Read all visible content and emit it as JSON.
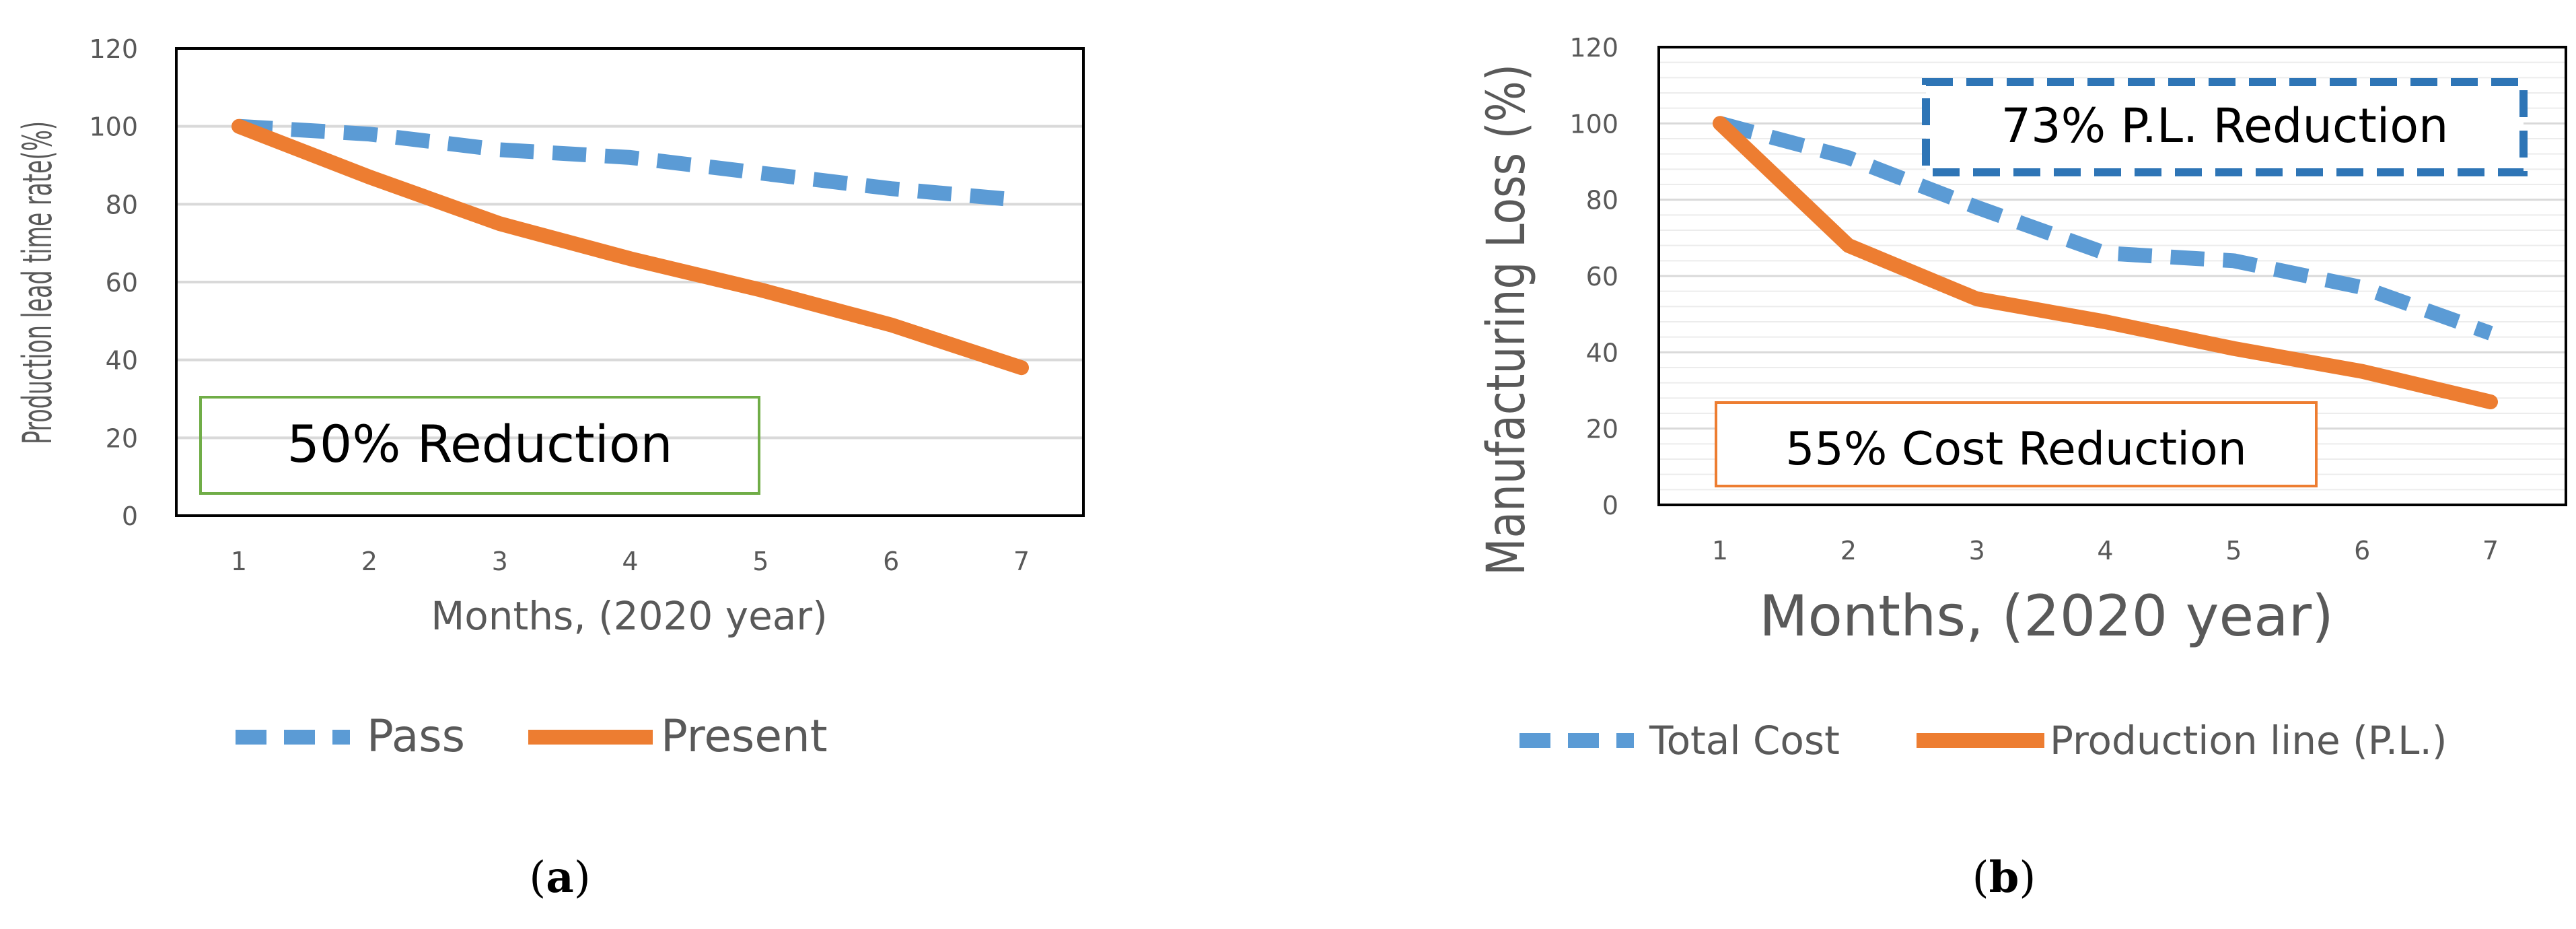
{
  "chart_data": [
    {
      "type": "line",
      "panel_label": "a",
      "x": [
        1,
        2,
        3,
        4,
        5,
        6,
        7
      ],
      "categories": [
        "1",
        "2",
        "3",
        "4",
        "5",
        "6",
        "7"
      ],
      "series": [
        {
          "name": "Pass",
          "values": [
            100,
            98,
            94,
            92,
            88,
            84,
            81
          ],
          "color": "#5B9BD5",
          "style": "dashed"
        },
        {
          "name": "Present",
          "values": [
            100,
            87,
            75,
            66,
            58,
            49,
            38
          ],
          "color": "#ED7D31",
          "style": "solid"
        }
      ],
      "ylim": [
        0,
        120
      ],
      "yticks": [
        "0",
        "20",
        "40",
        "60",
        "80",
        "100",
        "120"
      ],
      "xlabel": "Months, (2020 year)",
      "ylabel": "Production lead time rate(%)",
      "grid": true,
      "legend": "bottom",
      "annotations": [
        {
          "text": "50% Reduction",
          "border_color": "#70AD47",
          "border_style": "solid",
          "placement": "bottom-left"
        }
      ]
    },
    {
      "type": "line",
      "panel_label": "b",
      "x": [
        1,
        2,
        3,
        4,
        5,
        6,
        7
      ],
      "categories": [
        "1",
        "2",
        "3",
        "4",
        "5",
        "6",
        "7"
      ],
      "series": [
        {
          "name": "Total Cost",
          "values": [
            100,
            91,
            78,
            66,
            64,
            57,
            45
          ],
          "color": "#5B9BD5",
          "style": "dashed"
        },
        {
          "name": "Production line (P.L.)",
          "values": [
            100,
            68,
            54,
            48,
            41,
            35,
            27
          ],
          "color": "#ED7D31",
          "style": "solid"
        }
      ],
      "ylim": [
        0,
        120
      ],
      "yticks": [
        "0",
        "20",
        "40",
        "60",
        "80",
        "100",
        "120"
      ],
      "xlabel": "Months, (2020 year)",
      "ylabel": "Manufacturing Loss  (%)",
      "grid": true,
      "legend": "bottom",
      "annotations": [
        {
          "text": "73% P.L. Reduction",
          "border_color": "#2E75B6",
          "border_style": "dashed",
          "placement": "top-right"
        },
        {
          "text": "55% Cost Reduction",
          "border_color": "#ED7D31",
          "border_style": "solid",
          "placement": "bottom-left"
        }
      ]
    }
  ],
  "captions": {
    "a": {
      "open": "(",
      "letter": "a",
      "close": ")"
    },
    "b": {
      "open": "(",
      "letter": "b",
      "close": ")"
    }
  }
}
